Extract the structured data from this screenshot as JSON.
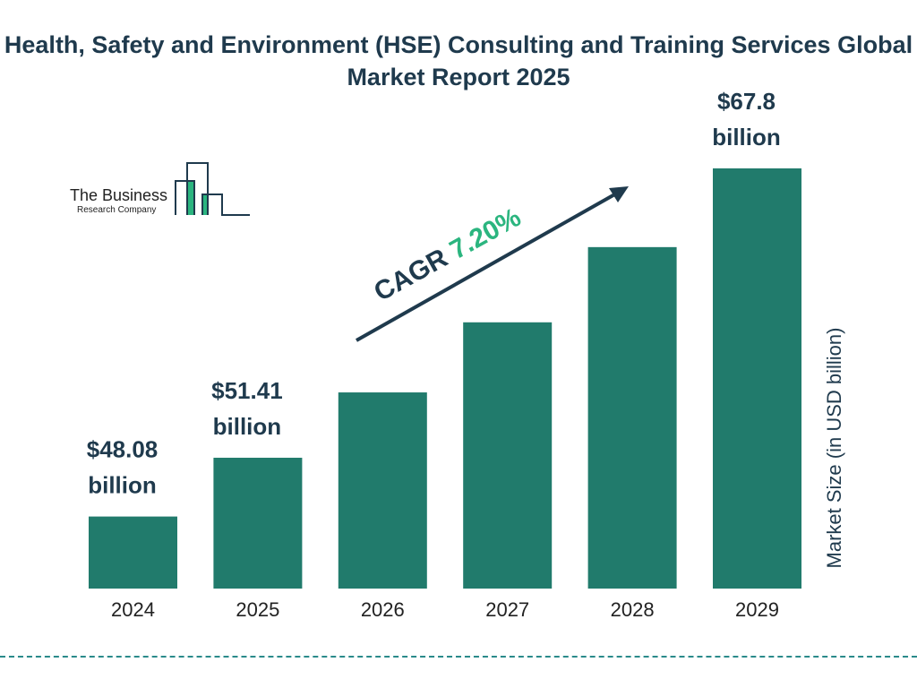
{
  "title": "Health, Safety and Environment (HSE) Consulting and Training Services Global Market Report 2025",
  "logo": {
    "line1": "The Business",
    "line2": "Research Company"
  },
  "cagr": {
    "label": "CAGR",
    "value": "7.20%"
  },
  "colors": {
    "bar": "#217b6c",
    "title": "#1f3a4d",
    "accent": "#2bb57f",
    "divider": "#2a8a8a"
  },
  "chart_data": {
    "type": "bar",
    "categories": [
      "2024",
      "2025",
      "2026",
      "2027",
      "2028",
      "2029"
    ],
    "values": [
      48.08,
      51.41,
      55.11,
      59.08,
      63.34,
      67.8
    ],
    "value_labels": [
      [
        "$48.08",
        "billion"
      ],
      [
        "$51.41",
        "billion"
      ],
      null,
      null,
      null,
      [
        "$67.8",
        "billion"
      ]
    ],
    "ylabel": "Market Size (in USD billion)",
    "xlabel": "",
    "ylim": [
      44,
      68
    ],
    "grid": false,
    "annotation": "CAGR 7.20%"
  }
}
